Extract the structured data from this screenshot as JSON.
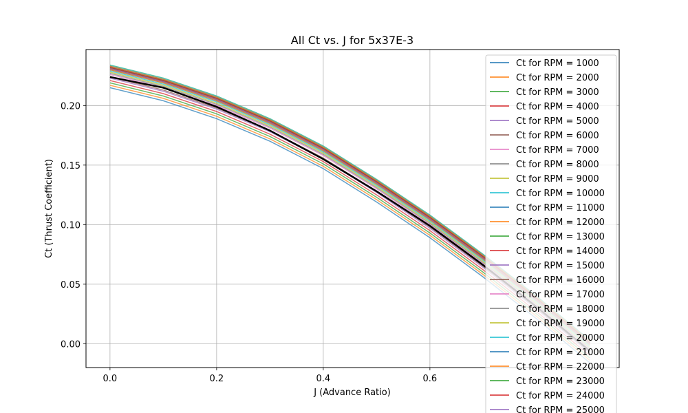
{
  "chart_data": {
    "type": "line",
    "title": "All Ct vs. J for 5x37E-3",
    "xlabel": "J (Advance Ratio)",
    "ylabel": "Ct (Thrust Coefficient)",
    "xlim": [
      -0.045,
      0.955
    ],
    "ylim": [
      -0.02,
      0.247
    ],
    "xticks": [
      0.0,
      0.2,
      0.4,
      0.6
    ],
    "xtick_labels": [
      "0.0",
      "0.2",
      "0.4",
      "0.6"
    ],
    "yticks": [
      0.0,
      0.05,
      0.1,
      0.15,
      0.2
    ],
    "ytick_labels": [
      "0.00",
      "0.05",
      "0.10",
      "0.15",
      "0.20"
    ],
    "grid": true,
    "legend_position": "upper right",
    "x": [
      0.0,
      0.1,
      0.2,
      0.3,
      0.4,
      0.5,
      0.6,
      0.7,
      0.8,
      0.9
    ],
    "series": [
      {
        "name": "Ct for RPM = 1000",
        "color": "#1f77b4",
        "values": [
          0.215,
          0.204,
          0.189,
          0.17,
          0.147,
          0.119,
          0.089,
          0.056,
          0.021,
          -0.016
        ]
      },
      {
        "name": "Ct for RPM = 2000",
        "color": "#ff7f0e",
        "values": [
          0.217,
          0.206,
          0.191,
          0.172,
          0.149,
          0.121,
          0.091,
          0.058,
          0.023,
          -0.014
        ]
      },
      {
        "name": "Ct for RPM = 3000",
        "color": "#2ca02c",
        "values": [
          0.219,
          0.208,
          0.193,
          0.174,
          0.151,
          0.123,
          0.093,
          0.06,
          0.025,
          -0.012
        ]
      },
      {
        "name": "Ct for RPM = 4000",
        "color": "#d62728",
        "values": [
          0.221,
          0.21,
          0.195,
          0.176,
          0.153,
          0.125,
          0.095,
          0.062,
          0.027,
          -0.01
        ]
      },
      {
        "name": "Ct for RPM = 5000",
        "color": "#9467bd",
        "values": [
          0.223,
          0.212,
          0.197,
          0.178,
          0.155,
          0.127,
          0.097,
          0.064,
          0.029,
          -0.008
        ]
      },
      {
        "name": "Ct for RPM = 6000",
        "color": "#8c564b",
        "values": [
          0.224,
          0.213,
          0.198,
          0.179,
          0.156,
          0.128,
          0.098,
          0.065,
          0.03,
          -0.007
        ]
      },
      {
        "name": "Ct for RPM = 7000",
        "color": "#e377c2",
        "values": [
          0.226,
          0.215,
          0.2,
          0.181,
          0.158,
          0.13,
          0.1,
          0.067,
          0.032,
          -0.005
        ]
      },
      {
        "name": "Ct for RPM = 8000",
        "color": "#7f7f7f",
        "values": [
          0.227,
          0.216,
          0.201,
          0.182,
          0.159,
          0.131,
          0.101,
          0.068,
          0.033,
          -0.004
        ]
      },
      {
        "name": "Ct for RPM = 9000",
        "color": "#bcbd22",
        "values": [
          0.228,
          0.217,
          0.202,
          0.183,
          0.16,
          0.132,
          0.102,
          0.069,
          0.034,
          -0.003
        ]
      },
      {
        "name": "Ct for RPM = 10000",
        "color": "#17becf",
        "values": [
          0.229,
          0.218,
          0.203,
          0.184,
          0.161,
          0.133,
          0.103,
          0.07,
          0.035,
          -0.002
        ]
      },
      {
        "name": "Ct for RPM = 11000",
        "color": "#1f77b4",
        "values": [
          0.23,
          0.219,
          0.204,
          0.185,
          0.162,
          0.134,
          0.104,
          0.071,
          0.036,
          -0.001
        ]
      },
      {
        "name": "Ct for RPM = 12000",
        "color": "#ff7f0e",
        "values": [
          0.23,
          0.219,
          0.204,
          0.185,
          0.162,
          0.134,
          0.104,
          0.071,
          0.036,
          -0.001
        ]
      },
      {
        "name": "Ct for RPM = 13000",
        "color": "#2ca02c",
        "values": [
          0.231,
          0.22,
          0.205,
          0.186,
          0.163,
          0.135,
          0.105,
          0.072,
          0.037,
          0.0
        ]
      },
      {
        "name": "Ct for RPM = 14000",
        "color": "#d62728",
        "values": [
          0.231,
          0.22,
          0.205,
          0.186,
          0.163,
          0.135,
          0.105,
          0.072,
          0.037,
          0.0
        ]
      },
      {
        "name": "Ct for RPM = 15000",
        "color": "#9467bd",
        "values": [
          0.232,
          0.221,
          0.206,
          0.187,
          0.164,
          0.136,
          0.106,
          0.073,
          0.038,
          0.001
        ]
      },
      {
        "name": "Ct for RPM = 16000",
        "color": "#8c564b",
        "values": [
          0.232,
          0.221,
          0.206,
          0.187,
          0.164,
          0.136,
          0.106,
          0.073,
          0.038,
          0.001
        ]
      },
      {
        "name": "Ct for RPM = 17000",
        "color": "#e377c2",
        "values": [
          0.233,
          0.222,
          0.207,
          0.188,
          0.165,
          0.137,
          0.107,
          0.074,
          0.039,
          0.002
        ]
      },
      {
        "name": "Ct for RPM = 18000",
        "color": "#7f7f7f",
        "values": [
          0.233,
          0.222,
          0.207,
          0.188,
          0.165,
          0.137,
          0.107,
          0.074,
          0.039,
          0.002
        ]
      },
      {
        "name": "Ct for RPM = 19000",
        "color": "#bcbd22",
        "values": [
          0.234,
          0.223,
          0.208,
          0.189,
          0.166,
          0.138,
          0.108,
          0.075,
          0.04,
          0.003
        ]
      },
      {
        "name": "Ct for RPM = 20000",
        "color": "#17becf",
        "values": [
          0.234,
          0.223,
          0.208,
          0.189,
          0.166,
          0.138,
          0.108,
          0.075,
          0.04,
          0.003
        ]
      },
      {
        "name": "Ct for RPM = 21000",
        "color": "#1f77b4",
        "values": [
          0.233,
          0.222,
          0.207,
          0.188,
          0.165,
          0.137,
          0.107,
          0.074,
          0.039,
          0.002
        ]
      },
      {
        "name": "Ct for RPM = 22000",
        "color": "#ff7f0e",
        "values": [
          0.233,
          0.222,
          0.207,
          0.188,
          0.165,
          0.137,
          0.107,
          0.074,
          0.039,
          0.002
        ]
      },
      {
        "name": "Ct for RPM = 23000",
        "color": "#2ca02c",
        "values": [
          0.232,
          0.221,
          0.206,
          0.187,
          0.164,
          0.136,
          0.106,
          0.073,
          0.038,
          0.001
        ]
      },
      {
        "name": "Ct for RPM = 24000",
        "color": "#d62728",
        "values": [
          0.232,
          0.221,
          0.206,
          0.187,
          0.164,
          0.136,
          0.106,
          0.073,
          0.038,
          0.001
        ]
      },
      {
        "name": "Ct for RPM = 25000",
        "color": "#9467bd",
        "values": [
          0.231,
          0.22,
          0.205,
          0.186,
          0.163,
          0.135,
          0.105,
          0.072,
          0.037,
          0.0
        ]
      }
    ],
    "mean_curve": {
      "color": "#000000",
      "values": [
        0.224,
        0.215,
        0.199,
        0.179,
        0.155,
        0.128,
        0.099,
        0.066,
        0.031,
        -0.006
      ]
    }
  }
}
